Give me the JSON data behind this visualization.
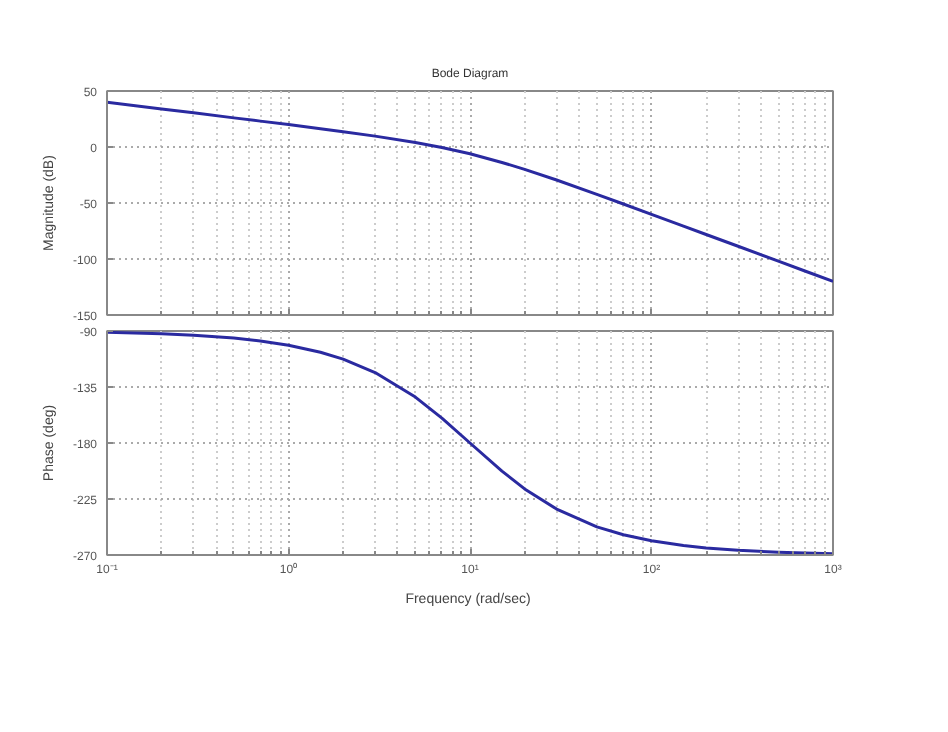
{
  "chart_data": [
    {
      "type": "line",
      "title": "Bode Diagram",
      "ylabel": "Magnitude (dB)",
      "x": [
        0.1,
        0.2,
        0.3,
        0.5,
        0.7,
        1,
        1.5,
        2,
        3,
        5,
        7,
        10,
        15,
        20,
        30,
        50,
        70,
        100,
        150,
        200,
        300,
        500,
        700,
        1000
      ],
      "series": [
        {
          "color": "#2a2aa0",
          "values": [
            40.0,
            34.0,
            30.5,
            26.0,
            23.1,
            20.0,
            16.3,
            13.6,
            9.7,
            4.1,
            -0.4,
            -6.0,
            -13.8,
            -20.0,
            -29.5,
            -42.3,
            -50.9,
            -60.1,
            -70.6,
            -78.1,
            -88.6,
            -101.9,
            -110.7,
            -120.0
          ]
        }
      ],
      "log": "x",
      "xlim": [
        0.1,
        1000
      ],
      "xticks": [
        {
          "value": 0.1,
          "label": null
        },
        {
          "value": 1,
          "label": null
        },
        {
          "value": 10,
          "label": null
        },
        {
          "value": 100,
          "label": null
        },
        {
          "value": 1000,
          "label": null
        }
      ],
      "ylim": [
        -150,
        50
      ],
      "yticks": [
        -150,
        -100,
        -50,
        0,
        50
      ],
      "grid": true,
      "tick_labels": "y"
    },
    {
      "type": "line",
      "xlabel": "Frequency  (rad/sec)",
      "ylabel": "Phase (deg)",
      "x": [
        0.1,
        0.2,
        0.3,
        0.5,
        0.7,
        1,
        1.5,
        2,
        3,
        5,
        7,
        10,
        15,
        20,
        30,
        50,
        70,
        100,
        150,
        200,
        300,
        500,
        700,
        1000
      ],
      "series": [
        {
          "color": "#2a2aa0",
          "values": [
            -91.1,
            -92.3,
            -93.4,
            -95.7,
            -98.0,
            -101.4,
            -107.1,
            -112.6,
            -123.4,
            -143.1,
            -160.0,
            -180.0,
            -202.6,
            -216.9,
            -233.1,
            -247.4,
            -253.7,
            -258.6,
            -262.4,
            -264.3,
            -266.2,
            -267.7,
            -268.4,
            -268.9
          ]
        }
      ],
      "log": "x",
      "xlim": [
        0.1,
        1000
      ],
      "xticks": [
        {
          "value": 0.1,
          "label": "10⁻¹"
        },
        {
          "value": 1,
          "label": "10⁰"
        },
        {
          "value": 10,
          "label": "10¹"
        },
        {
          "value": 100,
          "label": "10²"
        },
        {
          "value": 1000,
          "label": "10³"
        }
      ],
      "ylim": [
        -270,
        -90
      ],
      "yticks": [
        -270,
        -225,
        -180,
        -135,
        -90
      ],
      "grid": true
    }
  ]
}
